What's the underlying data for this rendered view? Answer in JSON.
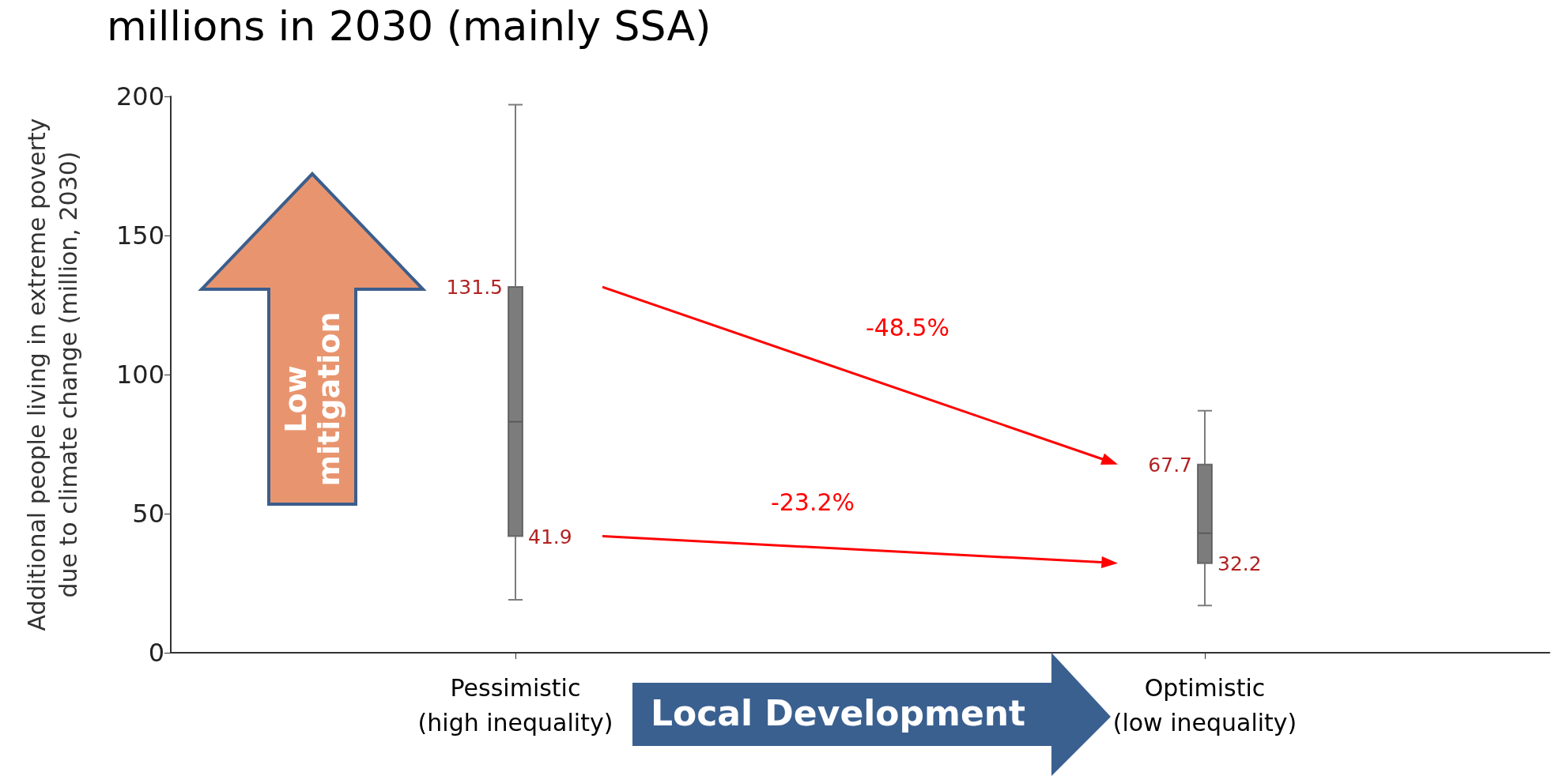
{
  "chart_data": {
    "type": "box",
    "title": "millions in 2030 (mainly SSA)",
    "ylabel": "Additional people living in extreme poverty\ndue to climate change (million, 2030)",
    "categories": [
      "Pessimistic\n(high inequality)",
      "Optimistic\n(low inequality)"
    ],
    "boxes": [
      {
        "low": 19,
        "q1": 41.9,
        "median": 83,
        "q3": 131.5,
        "high": 197
      },
      {
        "low": 17,
        "q1": 32.2,
        "median": 43,
        "q3": 67.7,
        "high": 87
      }
    ],
    "color": "#505050",
    "ylim": [
      0,
      200
    ],
    "yticks": [
      0,
      50,
      100,
      150,
      200
    ],
    "grid": false,
    "annotations": [
      "Low\nmitigation",
      "Local Development",
      "-48.5%",
      "-23.2%",
      {
        "text": "131.5",
        "x": "Pessimistic\n(high inequality)",
        "y": 131.5
      },
      {
        "text": "41.9",
        "x": "Pessimistic\n(high inequality)",
        "y": 41.9
      },
      {
        "text": "67.7",
        "x": "Optimistic\n(low inequality)",
        "y": 67.7
      },
      {
        "text": "32.2",
        "x": "Optimistic\n(low inequality)",
        "y": 32.2
      }
    ]
  }
}
